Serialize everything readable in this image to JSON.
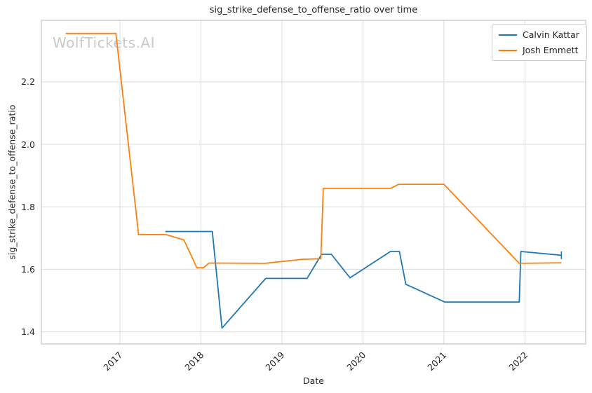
{
  "watermark": "WolfTickets.AI",
  "chart_data": {
    "type": "line",
    "title": "sig_strike_defense_to_offense_ratio over time",
    "xlabel": "Date",
    "ylabel": "sig_strike_defense_to_offense_ratio",
    "xlim": [
      2016.03,
      2022.75
    ],
    "ylim": [
      1.361,
      2.397
    ],
    "grid": true,
    "legend_position": "upper right",
    "x_ticks": [
      2017,
      2018,
      2019,
      2020,
      2021,
      2022
    ],
    "x_tick_labels": [
      "2017",
      "2018",
      "2019",
      "2020",
      "2021",
      "2022"
    ],
    "y_ticks": [
      1.4,
      1.6,
      1.8,
      2.0,
      2.2
    ],
    "y_tick_labels": [
      "1.4",
      "1.6",
      "1.8",
      "2.0",
      "2.2"
    ],
    "series": [
      {
        "name": "Calvin Kattar",
        "color": "#1f77b4",
        "end_marker": "tick",
        "x": [
          2017.56,
          2018.14,
          2018.26,
          2018.8,
          2019.31,
          2019.49,
          2019.61,
          2019.84,
          2020.34,
          2020.45,
          2020.53,
          2021.01,
          2021.93,
          2021.95,
          2022.45
        ],
        "y": [
          1.721,
          1.721,
          1.412,
          1.571,
          1.571,
          1.648,
          1.648,
          1.573,
          1.657,
          1.657,
          1.552,
          1.495,
          1.495,
          1.657,
          1.645
        ]
      },
      {
        "name": "Josh Emmett",
        "color": "#ff7f0e",
        "end_marker": "none",
        "x": [
          2016.33,
          2016.95,
          2017.23,
          2017.57,
          2017.79,
          2017.95,
          2018.03,
          2018.1,
          2018.79,
          2019.25,
          2019.48,
          2019.51,
          2020.34,
          2020.44,
          2021.0,
          2021.93,
          2022.45
        ],
        "y": [
          2.355,
          2.355,
          1.711,
          1.711,
          1.694,
          1.605,
          1.605,
          1.62,
          1.619,
          1.632,
          1.634,
          1.859,
          1.859,
          1.872,
          1.872,
          1.619,
          1.621
        ]
      }
    ],
    "style": {
      "grid_color": "#dcdcdc",
      "spine_color": "#c4c4c4",
      "text_color": "#262626",
      "background": "#ffffff"
    }
  }
}
